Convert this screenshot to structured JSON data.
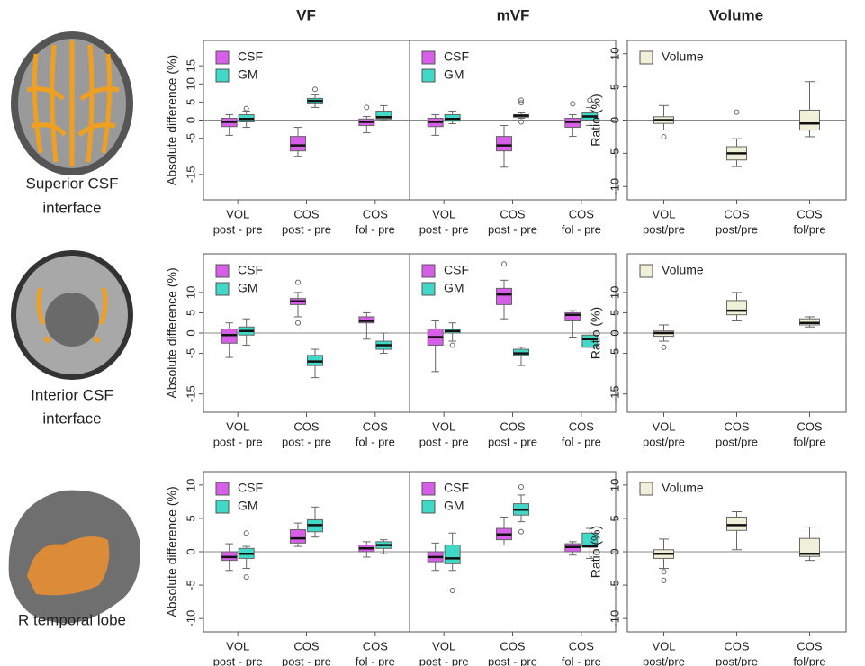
{
  "column_titles": [
    "VF",
    "mVF",
    "Volume"
  ],
  "row_labels": [
    [
      "Superior CSF",
      "interface"
    ],
    [
      "Interior CSF",
      "interface"
    ],
    [
      "R temporal lobe"
    ]
  ],
  "chart_data": [
    {
      "type": "box",
      "ylabel": "Absolute difference (%)",
      "ylim": [
        -22,
        22
      ],
      "yticks": [
        15,
        10,
        5,
        0,
        -5,
        -15
      ],
      "legend": "top-left",
      "categories": [
        [
          "VOL",
          "post - pre"
        ],
        [
          "COS",
          "post - pre"
        ],
        [
          "COS",
          "fol - pre"
        ]
      ],
      "series": [
        {
          "name": "CSF",
          "color": "#d65ee8",
          "values": [
            {
              "min": -4.2,
              "q1": -1.8,
              "median": -0.5,
              "q3": 0.5,
              "max": 1.5,
              "outliers": []
            },
            {
              "min": -10,
              "q1": -8.5,
              "median": -7,
              "q3": -4.5,
              "max": -2,
              "outliers": []
            },
            {
              "min": -3.5,
              "q1": -1.5,
              "median": -0.5,
              "q3": 0.3,
              "max": 1,
              "outliers": [
                3.5
              ]
            }
          ]
        },
        {
          "name": "GM",
          "color": "#40d9c8",
          "values": [
            {
              "min": -2,
              "q1": -0.5,
              "median": 0.3,
              "q3": 1.5,
              "max": 2.5,
              "outliers": [
                3.2
              ]
            },
            {
              "min": 3.5,
              "q1": 4.5,
              "median": 5.3,
              "q3": 6,
              "max": 7,
              "outliers": [
                8.5
              ]
            },
            {
              "min": 0,
              "q1": 0.3,
              "median": 0.8,
              "q3": 2.5,
              "max": 4,
              "outliers": []
            }
          ]
        }
      ]
    },
    {
      "type": "box",
      "ylim": [
        -22,
        22
      ],
      "legend": "top-left",
      "categories": [
        [
          "VOL",
          "post - pre"
        ],
        [
          "COS",
          "post - pre"
        ],
        [
          "COS",
          "fol - pre"
        ]
      ],
      "series": [
        {
          "name": "CSF",
          "color": "#d65ee8",
          "values": [
            {
              "min": -4.2,
              "q1": -1.8,
              "median": -0.5,
              "q3": 0.5,
              "max": 1.5,
              "outliers": []
            },
            {
              "min": -13,
              "q1": -8.5,
              "median": -7,
              "q3": -4.5,
              "max": -1.5,
              "outliers": []
            },
            {
              "min": -4.5,
              "q1": -2,
              "median": -0.5,
              "q3": 0.5,
              "max": 1.5,
              "outliers": [
                4.5
              ]
            }
          ]
        },
        {
          "name": "GM",
          "color": "#40d9c8",
          "values": [
            {
              "min": -1,
              "q1": -0.3,
              "median": 0.3,
              "q3": 1.5,
              "max": 2.5,
              "outliers": []
            },
            {
              "min": 0.5,
              "q1": 0.8,
              "median": 1.2,
              "q3": 1.5,
              "max": 2,
              "outliers": [
                5.5,
                4.8,
                -0.5
              ]
            },
            {
              "min": -1.5,
              "q1": 0,
              "median": 1,
              "q3": 2,
              "max": 3.5,
              "outliers": [
                5.5
              ]
            }
          ]
        }
      ]
    },
    {
      "type": "box",
      "ylabel": "Ratio (%)",
      "ylim": [
        -12,
        12
      ],
      "yticks": [
        10,
        5,
        0,
        -5,
        -10
      ],
      "legend": "top-left",
      "categories": [
        [
          "VOL",
          "post/pre"
        ],
        [
          "COS",
          "post/pre"
        ],
        [
          "COS",
          "fol/pre"
        ]
      ],
      "series": [
        {
          "name": "Volume",
          "color": "#f0f0d8",
          "values": [
            {
              "min": -1.5,
              "q1": -0.5,
              "median": 0,
              "q3": 0.5,
              "max": 2.2,
              "outliers": [
                -2.5
              ]
            },
            {
              "min": -7,
              "q1": -6,
              "median": -5,
              "q3": -4,
              "max": -2.8,
              "outliers": [
                1.2
              ]
            },
            {
              "min": -2.5,
              "q1": -1.5,
              "median": -0.5,
              "q3": 1.5,
              "max": 5.8,
              "outliers": []
            }
          ]
        }
      ]
    },
    {
      "type": "box",
      "ylabel": "Absolute difference (%)",
      "ylim": [
        -19.5,
        19.5
      ],
      "yticks": [
        10,
        5,
        0,
        -5,
        -15
      ],
      "legend": "top-left",
      "categories": [
        [
          "VOL",
          "post - pre"
        ],
        [
          "COS",
          "post - pre"
        ],
        [
          "COS",
          "fol - pre"
        ]
      ],
      "series": [
        {
          "name": "CSF",
          "color": "#d65ee8",
          "values": [
            {
              "min": -6,
              "q1": -2.5,
              "median": -0.5,
              "q3": 1,
              "max": 2.5,
              "outliers": []
            },
            {
              "min": 4,
              "q1": 7,
              "median": 7.8,
              "q3": 8.5,
              "max": 10,
              "outliers": [
                12.5,
                2.5
              ]
            },
            {
              "min": -1.5,
              "q1": 2.5,
              "median": 3,
              "q3": 4,
              "max": 5,
              "outliers": []
            }
          ]
        },
        {
          "name": "GM",
          "color": "#40d9c8",
          "values": [
            {
              "min": -3,
              "q1": -0.5,
              "median": 0.5,
              "q3": 1.5,
              "max": 3.5,
              "outliers": []
            },
            {
              "min": -11,
              "q1": -8,
              "median": -7,
              "q3": -5.5,
              "max": -4,
              "outliers": []
            },
            {
              "min": -5,
              "q1": -4,
              "median": -3,
              "q3": -2,
              "max": 0,
              "outliers": []
            }
          ]
        }
      ]
    },
    {
      "type": "box",
      "ylim": [
        -19.5,
        19.5
      ],
      "legend": "top-left",
      "categories": [
        [
          "VOL",
          "post - pre"
        ],
        [
          "COS",
          "post - pre"
        ],
        [
          "COS",
          "fol - pre"
        ]
      ],
      "series": [
        {
          "name": "CSF",
          "color": "#d65ee8",
          "values": [
            {
              "min": -9.5,
              "q1": -3,
              "median": -1,
              "q3": 1,
              "max": 3,
              "outliers": []
            },
            {
              "min": 3.5,
              "q1": 7,
              "median": 9.5,
              "q3": 11,
              "max": 13,
              "outliers": [
                17
              ]
            },
            {
              "min": -1,
              "q1": 3,
              "median": 4.5,
              "q3": 5,
              "max": 5.5,
              "outliers": []
            }
          ]
        },
        {
          "name": "GM",
          "color": "#40d9c8",
          "values": [
            {
              "min": -2,
              "q1": 0,
              "median": 0.5,
              "q3": 1,
              "max": 2.5,
              "outliers": [
                -3
              ]
            },
            {
              "min": -8,
              "q1": -5.5,
              "median": -5,
              "q3": -4,
              "max": -3.5,
              "outliers": []
            },
            {
              "min": -3.5,
              "q1": -3.5,
              "median": -1.5,
              "q3": -0.5,
              "max": 1,
              "outliers": []
            }
          ]
        }
      ]
    },
    {
      "type": "box",
      "ylabel": "Ratio (%)",
      "ylim": [
        -19.5,
        19.5
      ],
      "yticks": [
        10,
        5,
        0,
        -5,
        -15
      ],
      "legend": "top-left",
      "categories": [
        [
          "VOL",
          "post/pre"
        ],
        [
          "COS",
          "post/pre"
        ],
        [
          "COS",
          "fol/pre"
        ]
      ],
      "series": [
        {
          "name": "Volume",
          "color": "#f0f0d8",
          "values": [
            {
              "min": -2,
              "q1": -0.8,
              "median": 0,
              "q3": 0.5,
              "max": 2,
              "outliers": [
                -3.5
              ]
            },
            {
              "min": 3,
              "q1": 4.5,
              "median": 5.5,
              "q3": 8,
              "max": 10,
              "outliers": []
            },
            {
              "min": 1.5,
              "q1": 2,
              "median": 2.5,
              "q3": 3.5,
              "max": 4,
              "outliers": []
            }
          ]
        }
      ]
    },
    {
      "type": "box",
      "ylabel": "Absolute difference (%)",
      "ylim": [
        -12,
        12
      ],
      "yticks": [
        10,
        5,
        0,
        -5,
        -10
      ],
      "legend": "top-left",
      "categories": [
        [
          "VOL",
          "post - pre"
        ],
        [
          "COS",
          "post - pre"
        ],
        [
          "COS",
          "fol - pre"
        ]
      ],
      "series": [
        {
          "name": "CSF",
          "color": "#d65ee8",
          "values": [
            {
              "min": -2.8,
              "q1": -1.3,
              "median": -0.8,
              "q3": 0,
              "max": 1.2,
              "outliers": []
            },
            {
              "min": 0.8,
              "q1": 1.3,
              "median": 2,
              "q3": 3.3,
              "max": 4.3,
              "outliers": []
            },
            {
              "min": -0.8,
              "q1": 0,
              "median": 0.5,
              "q3": 1,
              "max": 1.5,
              "outliers": []
            }
          ]
        },
        {
          "name": "GM",
          "color": "#40d9c8",
          "values": [
            {
              "min": -2.5,
              "q1": -1,
              "median": -0.3,
              "q3": 0.5,
              "max": 0.8,
              "outliers": [
                2.8,
                -3.8
              ]
            },
            {
              "min": 2.2,
              "q1": 3,
              "median": 4,
              "q3": 4.8,
              "max": 6.7,
              "outliers": []
            },
            {
              "min": -0.3,
              "q1": 0.5,
              "median": 1,
              "q3": 1.5,
              "max": 1.8,
              "outliers": []
            }
          ]
        }
      ]
    },
    {
      "type": "box",
      "ylim": [
        -12,
        12
      ],
      "legend": "top-left",
      "categories": [
        [
          "VOL",
          "post - pre"
        ],
        [
          "COS",
          "post - pre"
        ],
        [
          "COS",
          "fol - pre"
        ]
      ],
      "series": [
        {
          "name": "CSF",
          "color": "#d65ee8",
          "values": [
            {
              "min": -2.8,
              "q1": -1.5,
              "median": -0.8,
              "q3": 0,
              "max": 1.3,
              "outliers": []
            },
            {
              "min": 1,
              "q1": 1.8,
              "median": 2.6,
              "q3": 3.5,
              "max": 5.2,
              "outliers": []
            },
            {
              "min": -0.5,
              "q1": 0,
              "median": 0.7,
              "q3": 1.2,
              "max": 1.5,
              "outliers": []
            }
          ]
        },
        {
          "name": "GM",
          "color": "#40d9c8",
          "values": [
            {
              "min": -2.8,
              "q1": -1.8,
              "median": -1,
              "q3": 1,
              "max": 2.8,
              "outliers": [
                -5.8
              ]
            },
            {
              "min": 4.5,
              "q1": 5.5,
              "median": 6.3,
              "q3": 7.2,
              "max": 8.5,
              "outliers": [
                9.7,
                3
              ]
            },
            {
              "min": -1,
              "q1": 0.8,
              "median": 0.8,
              "q3": 2.8,
              "max": 3.5,
              "outliers": []
            }
          ]
        }
      ]
    },
    {
      "type": "box",
      "ylabel": "Ratio (%)",
      "ylim": [
        -12,
        12
      ],
      "yticks": [
        10,
        5,
        0,
        -5,
        -10
      ],
      "legend": "top-left",
      "categories": [
        [
          "VOL",
          "post/pre"
        ],
        [
          "COS",
          "post/pre"
        ],
        [
          "COS",
          "fol/pre"
        ]
      ],
      "series": [
        {
          "name": "Volume",
          "color": "#f0f0d8",
          "values": [
            {
              "min": -2.5,
              "q1": -1,
              "median": -0.3,
              "q3": 0.3,
              "max": 1.9,
              "outliers": [
                -3,
                -4.3
              ]
            },
            {
              "min": 0.3,
              "q1": 3.2,
              "median": 4,
              "q3": 5.2,
              "max": 6,
              "outliers": []
            },
            {
              "min": -1.3,
              "q1": -0.7,
              "median": -0.3,
              "q3": 2,
              "max": 3.7,
              "outliers": []
            }
          ]
        }
      ]
    }
  ]
}
